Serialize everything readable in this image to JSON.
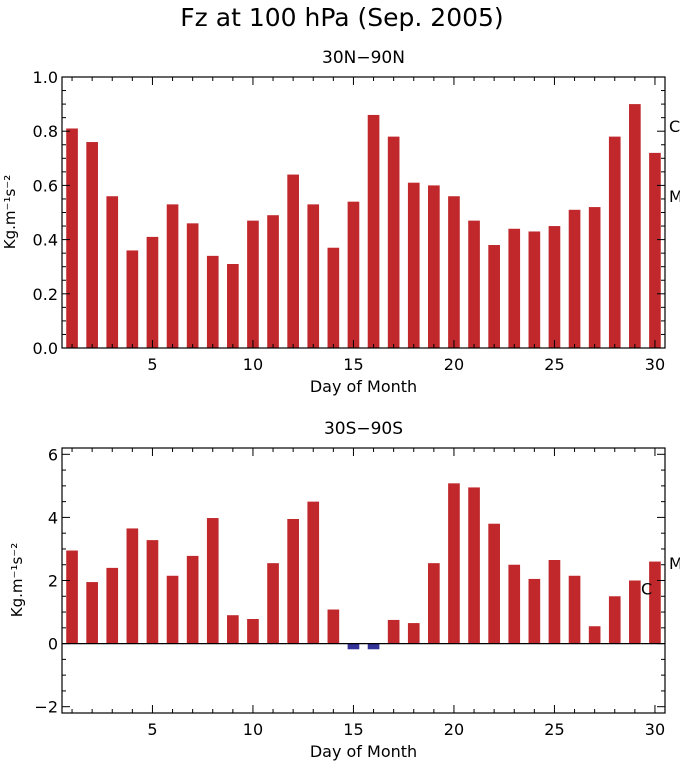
{
  "figure_title": "Fz at 100 hPa (Sep. 2005)",
  "colors": {
    "positive": "#c0282c",
    "negative": "#333399",
    "axis": "#000000"
  },
  "chart_data": [
    {
      "type": "bar",
      "title": "30N−90N",
      "xlabel": "Day of Month",
      "ylabel": "Kg.m⁻¹s⁻²",
      "xlim": [
        0.5,
        30.5
      ],
      "ylim": [
        0,
        1.0
      ],
      "xticks": [
        5,
        10,
        15,
        20,
        25,
        30
      ],
      "yticks": [
        0.0,
        0.2,
        0.4,
        0.6,
        0.8,
        1.0
      ],
      "ytick_labels": [
        "0.0",
        "0.2",
        "0.4",
        "0.6",
        "0.8",
        "1.0"
      ],
      "x": [
        1,
        2,
        3,
        4,
        5,
        6,
        7,
        8,
        9,
        10,
        11,
        12,
        13,
        14,
        15,
        16,
        17,
        18,
        19,
        20,
        21,
        22,
        23,
        24,
        25,
        26,
        27,
        28,
        29,
        30
      ],
      "values": [
        0.81,
        0.76,
        0.56,
        0.36,
        0.41,
        0.53,
        0.46,
        0.34,
        0.31,
        0.47,
        0.49,
        0.64,
        0.53,
        0.37,
        0.54,
        0.86,
        0.78,
        0.61,
        0.6,
        0.56,
        0.47,
        0.38,
        0.44,
        0.43,
        0.45,
        0.51,
        0.52,
        0.78,
        0.9,
        0.72
      ],
      "markers": [
        {
          "label": "C",
          "y": 0.82
        },
        {
          "label": "M",
          "y": 0.56
        }
      ]
    },
    {
      "type": "bar",
      "title": "30S−90S",
      "xlabel": "Day of Month",
      "ylabel": "Kg.m⁻¹s⁻²",
      "xlim": [
        0.5,
        30.5
      ],
      "ylim": [
        -2.2,
        6.2
      ],
      "xticks": [
        5,
        10,
        15,
        20,
        25,
        30
      ],
      "yticks": [
        -2,
        0,
        2,
        4,
        6
      ],
      "ytick_labels": [
        "−2",
        "0",
        "2",
        "4",
        "6"
      ],
      "x": [
        1,
        2,
        3,
        4,
        5,
        6,
        7,
        8,
        9,
        10,
        11,
        12,
        13,
        14,
        15,
        16,
        17,
        18,
        19,
        20,
        21,
        22,
        23,
        24,
        25,
        26,
        27,
        28,
        29,
        30
      ],
      "values": [
        2.95,
        1.95,
        2.4,
        3.65,
        3.28,
        2.15,
        2.78,
        3.98,
        0.9,
        0.78,
        2.55,
        3.95,
        4.5,
        1.08,
        -0.18,
        -0.18,
        0.75,
        0.65,
        2.55,
        5.08,
        4.95,
        3.8,
        2.5,
        2.05,
        2.65,
        2.15,
        0.55,
        1.5,
        2.0,
        2.6
      ],
      "markers": [
        {
          "label": "M",
          "y": 2.55
        },
        {
          "label": "C",
          "y": 1.75
        }
      ]
    }
  ]
}
